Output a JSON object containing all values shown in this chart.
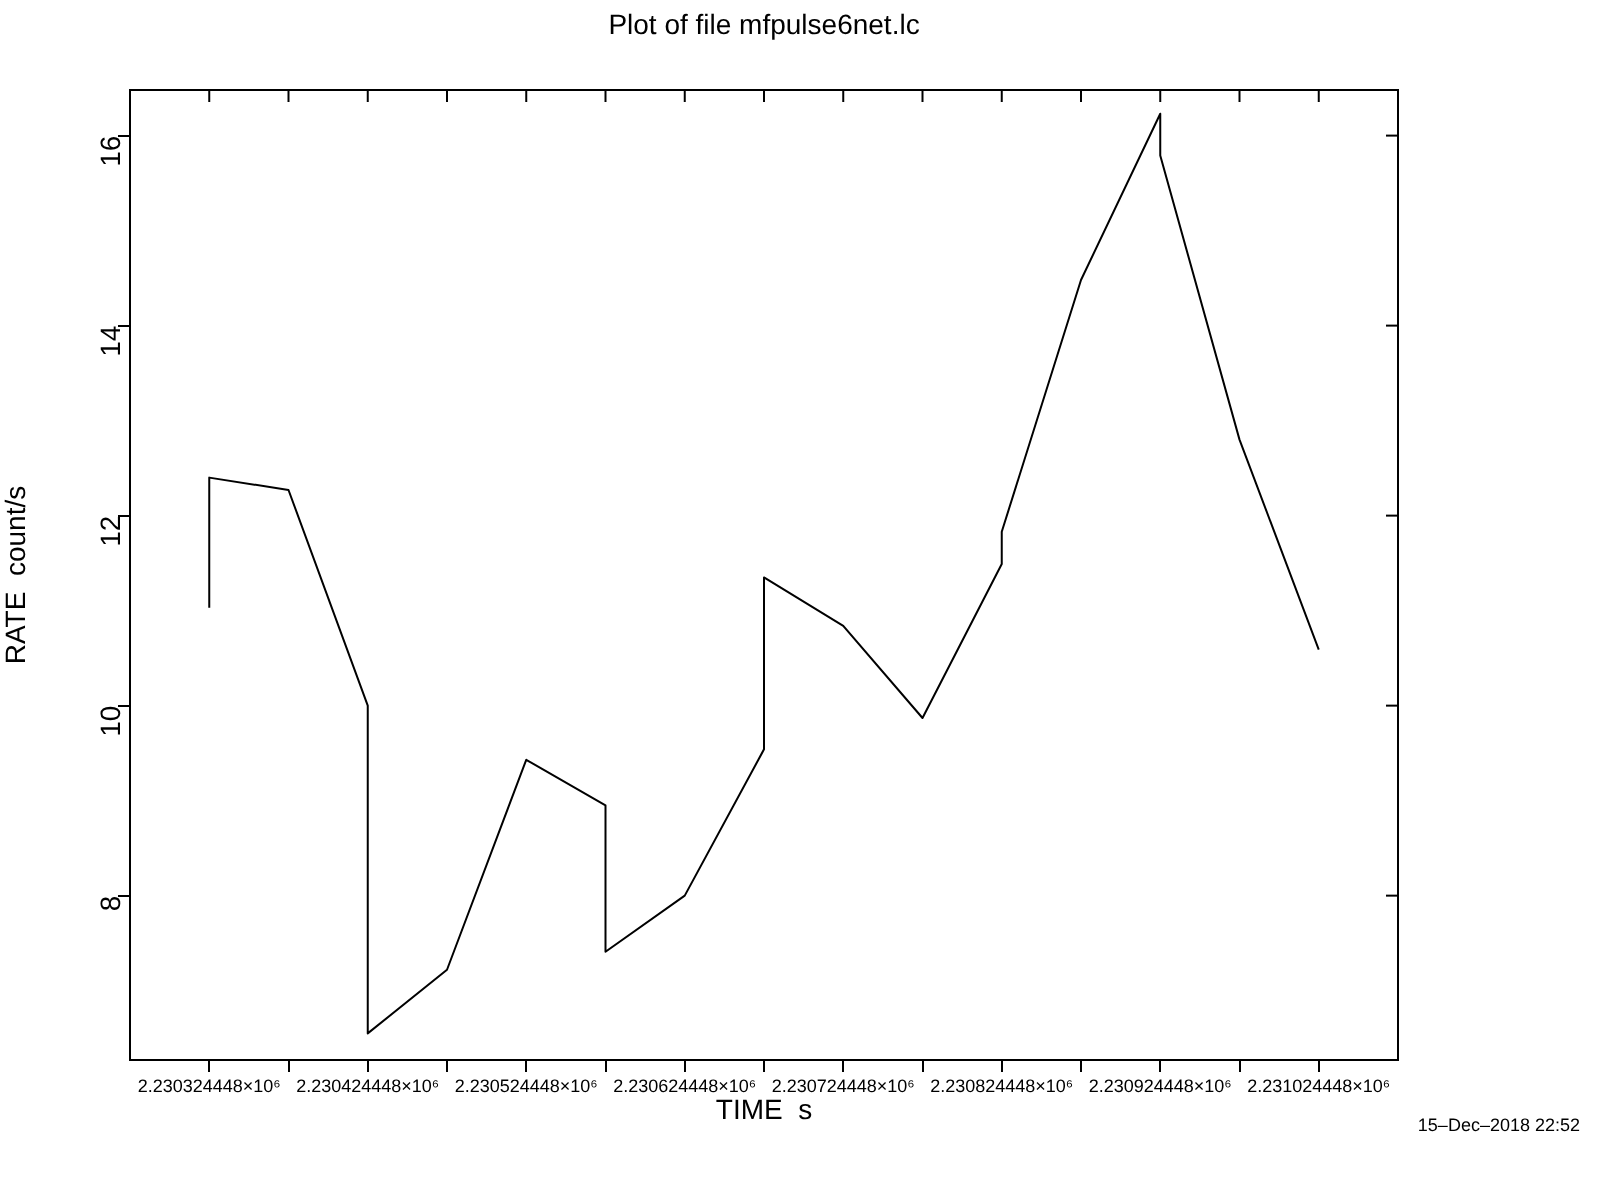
{
  "chart_data": {
    "type": "line",
    "title": "Plot of file mfpulse6net.lc",
    "xlabel": "TIME  s",
    "ylabel": "RATE  count/s",
    "annotations": [
      "15–Dec–2018 22:52"
    ],
    "x": [
      2230324.448,
      2230324.448,
      2230374.448,
      2230424.448,
      2230424.448,
      2230474.448,
      2230524.448,
      2230574.448,
      2230574.448,
      2230624.448,
      2230674.448,
      2230674.448,
      2230724.448,
      2230774.448,
      2230824.448,
      2230824.448,
      2230874.448,
      2230924.448,
      2230924.448,
      2230974.448,
      2231024.448
    ],
    "series": [
      {
        "color": "#000000",
        "values": [
          11.03,
          12.4,
          12.27,
          10.0,
          6.55,
          7.22,
          9.43,
          8.95,
          7.41,
          8.0,
          9.54,
          11.35,
          10.84,
          9.87,
          11.49,
          11.83,
          14.48,
          16.23,
          15.79,
          12.8,
          10.59
        ]
      }
    ],
    "xlim": [
      2230274.448,
      2231074.448
    ],
    "xticks": [
      {
        "value": 2230324.448,
        "label": "2.230324448×10⁶"
      },
      {
        "value": 2230374.448,
        "label": null
      },
      {
        "value": 2230424.448,
        "label": "2.230424448×10⁶"
      },
      {
        "value": 2230474.448,
        "label": null
      },
      {
        "value": 2230524.448,
        "label": "2.230524448×10⁶"
      },
      {
        "value": 2230574.448,
        "label": null
      },
      {
        "value": 2230624.448,
        "label": "2.230624448×10⁶"
      },
      {
        "value": 2230674.448,
        "label": null
      },
      {
        "value": 2230724.448,
        "label": "2.230724448×10⁶"
      },
      {
        "value": 2230774.448,
        "label": null
      },
      {
        "value": 2230824.448,
        "label": "2.230824448×10⁶"
      },
      {
        "value": 2230874.448,
        "label": null
      },
      {
        "value": 2230924.448,
        "label": "2.230924448×10⁶"
      },
      {
        "value": 2230974.448,
        "label": null
      },
      {
        "value": 2231024.448,
        "label": "2.231024448×10⁶"
      }
    ],
    "ylim": [
      6.27,
      16.48
    ],
    "yticks": [
      8,
      10,
      12,
      14,
      16
    ],
    "grid": false,
    "legend": false,
    "marker": "none",
    "line_style": "solid"
  }
}
